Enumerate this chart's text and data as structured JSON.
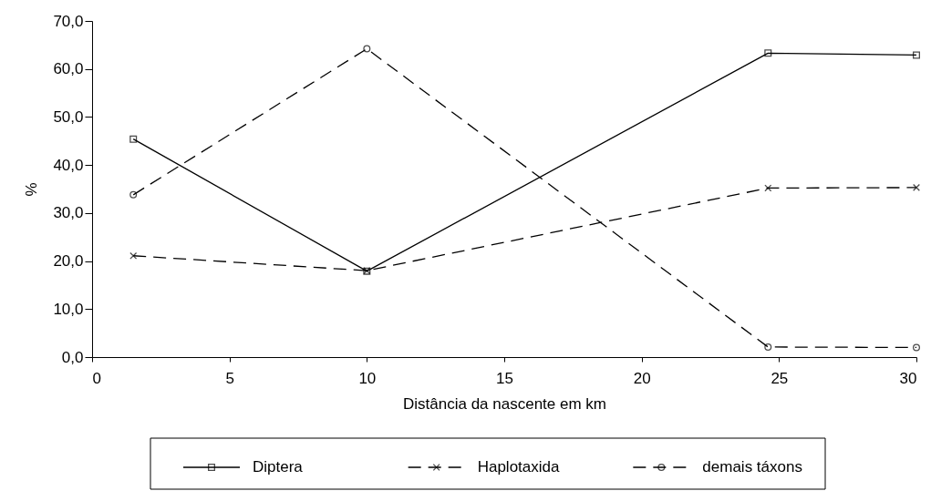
{
  "chart_data": {
    "type": "line",
    "xlabel": "Distância da nascente em km",
    "ylabel": "%",
    "x": [
      1.5,
      10,
      24.6,
      30
    ],
    "series": [
      {
        "name": "Diptera",
        "color": "#000000",
        "marker": "square",
        "line_style": "solid",
        "values": [
          45.4,
          17.9,
          63.3,
          62.9
        ]
      },
      {
        "name": "Haplotaxida",
        "color": "#000000",
        "marker": "cross",
        "line_style": "dashed",
        "values": [
          21.1,
          18.0,
          35.2,
          35.3
        ]
      },
      {
        "name": "demais táxons",
        "color": "#000000",
        "marker": "circle",
        "line_style": "dashed",
        "values": [
          33.8,
          64.2,
          2.1,
          2.0
        ]
      }
    ],
    "xlim": [
      0,
      30
    ],
    "xticks": [
      0,
      5,
      10,
      15,
      20,
      25,
      30
    ],
    "ylim": [
      0,
      70
    ],
    "yticks": [
      {
        "value": 0,
        "label": "0,0"
      },
      {
        "value": 10,
        "label": "10,0"
      },
      {
        "value": 20,
        "label": "20,0"
      },
      {
        "value": 30,
        "label": "30,0"
      },
      {
        "value": 40,
        "label": "40,0"
      },
      {
        "value": 50,
        "label": "50,0"
      },
      {
        "value": 60,
        "label": "60,0"
      },
      {
        "value": 70,
        "label": "70,0"
      }
    ],
    "grid": false,
    "legend": "bottom"
  }
}
